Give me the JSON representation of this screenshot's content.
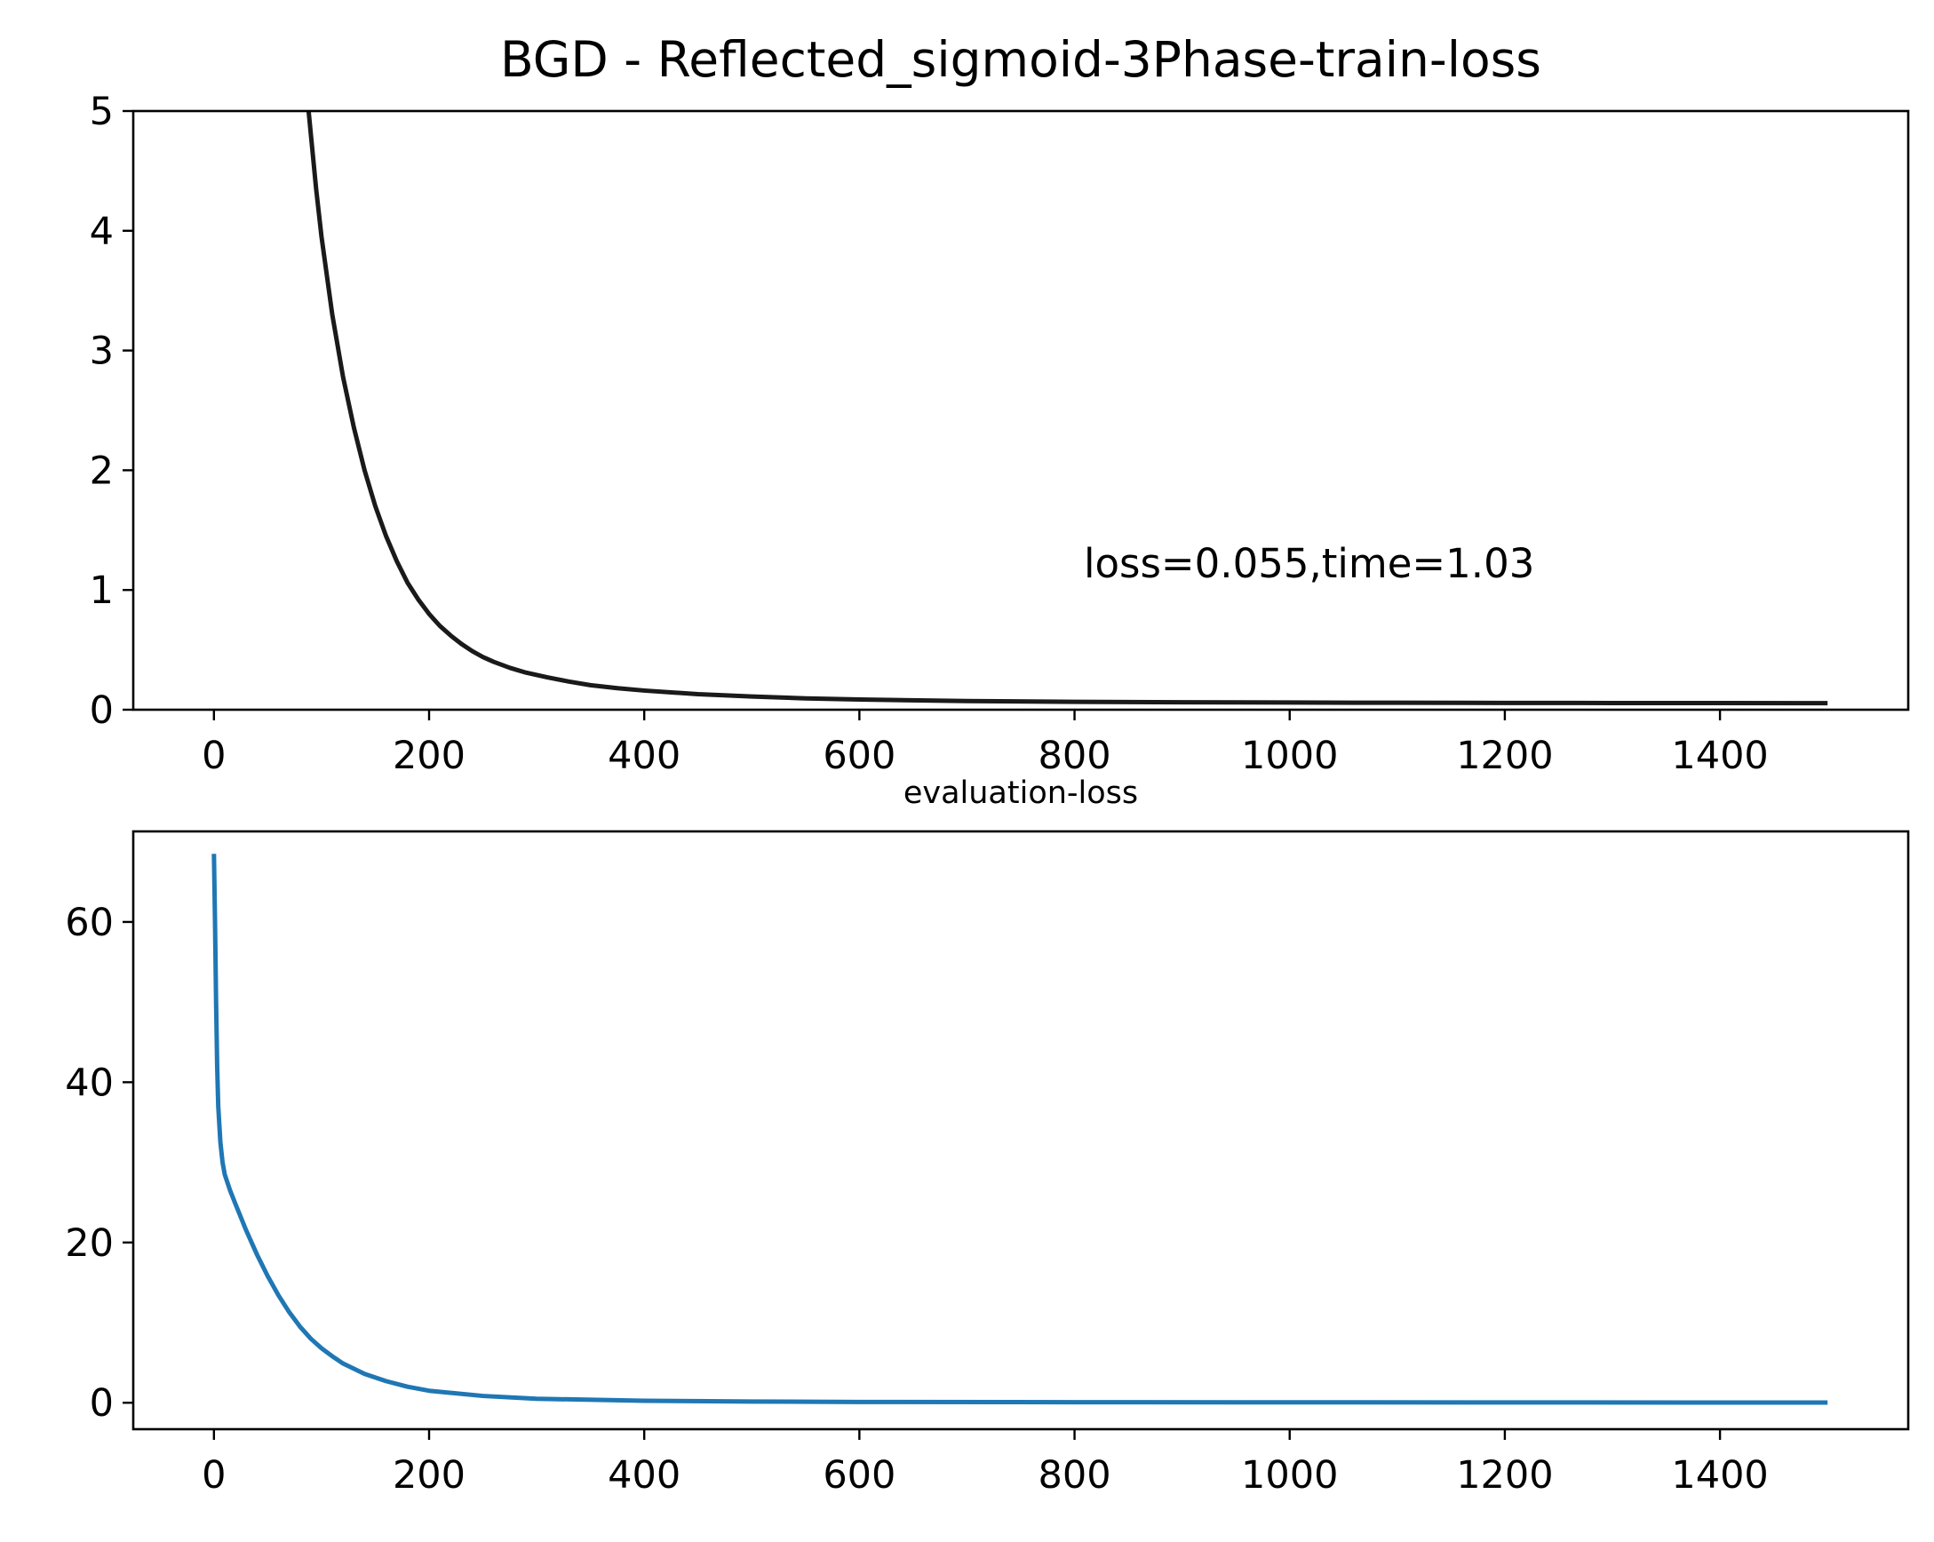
{
  "chart_data": [
    {
      "type": "line",
      "title": "BGD - Reflected_sigmoid-3Phase-train-loss",
      "xlabel": "",
      "ylabel": "",
      "xlim": [
        -75,
        1575
      ],
      "ylim": [
        0,
        5
      ],
      "xticks": [
        0,
        200,
        400,
        600,
        800,
        1000,
        1200,
        1400
      ],
      "yticks": [
        0,
        1,
        2,
        3,
        4,
        5
      ],
      "grid": false,
      "annotation": {
        "text": "loss=0.055,time=1.03",
        "x": 810,
        "y": 1.1
      },
      "series": [
        {
          "color": "#1a1a1a",
          "x": [
            88,
            95,
            100,
            110,
            120,
            130,
            140,
            150,
            160,
            170,
            180,
            190,
            200,
            210,
            220,
            230,
            240,
            250,
            260,
            275,
            290,
            310,
            330,
            350,
            375,
            400,
            450,
            500,
            550,
            600,
            700,
            800,
            900,
            1000,
            1100,
            1200,
            1300,
            1400,
            1500
          ],
          "y": [
            5.0,
            4.35,
            3.95,
            3.3,
            2.78,
            2.36,
            2.0,
            1.7,
            1.45,
            1.24,
            1.06,
            0.92,
            0.8,
            0.7,
            0.62,
            0.55,
            0.49,
            0.44,
            0.4,
            0.35,
            0.31,
            0.27,
            0.235,
            0.205,
            0.18,
            0.16,
            0.13,
            0.11,
            0.095,
            0.085,
            0.072,
            0.066,
            0.062,
            0.06,
            0.058,
            0.057,
            0.056,
            0.0555,
            0.055
          ]
        }
      ]
    },
    {
      "type": "line",
      "title": "evaluation-loss",
      "xlabel": "",
      "ylabel": "",
      "xlim": [
        -75,
        1575
      ],
      "ylim": [
        -3.3,
        71.3
      ],
      "xticks": [
        0,
        200,
        400,
        600,
        800,
        1000,
        1200,
        1400
      ],
      "yticks": [
        0,
        20,
        40,
        60
      ],
      "grid": false,
      "series": [
        {
          "color": "#1f77b4",
          "x": [
            0,
            1,
            2,
            3,
            4,
            6,
            8,
            10,
            15,
            20,
            30,
            40,
            50,
            60,
            70,
            80,
            90,
            100,
            110,
            120,
            140,
            160,
            180,
            200,
            250,
            300,
            400,
            500,
            600,
            800,
            1000,
            1200,
            1400,
            1500
          ],
          "y": [
            68.5,
            60,
            50,
            42,
            37,
            32.5,
            30,
            28.5,
            26.5,
            24.8,
            21.5,
            18.5,
            15.8,
            13.4,
            11.3,
            9.5,
            8.0,
            6.8,
            5.8,
            4.9,
            3.6,
            2.7,
            2.0,
            1.5,
            0.85,
            0.5,
            0.25,
            0.15,
            0.1,
            0.07,
            0.05,
            0.04,
            0.03,
            0.03
          ]
        }
      ]
    }
  ]
}
